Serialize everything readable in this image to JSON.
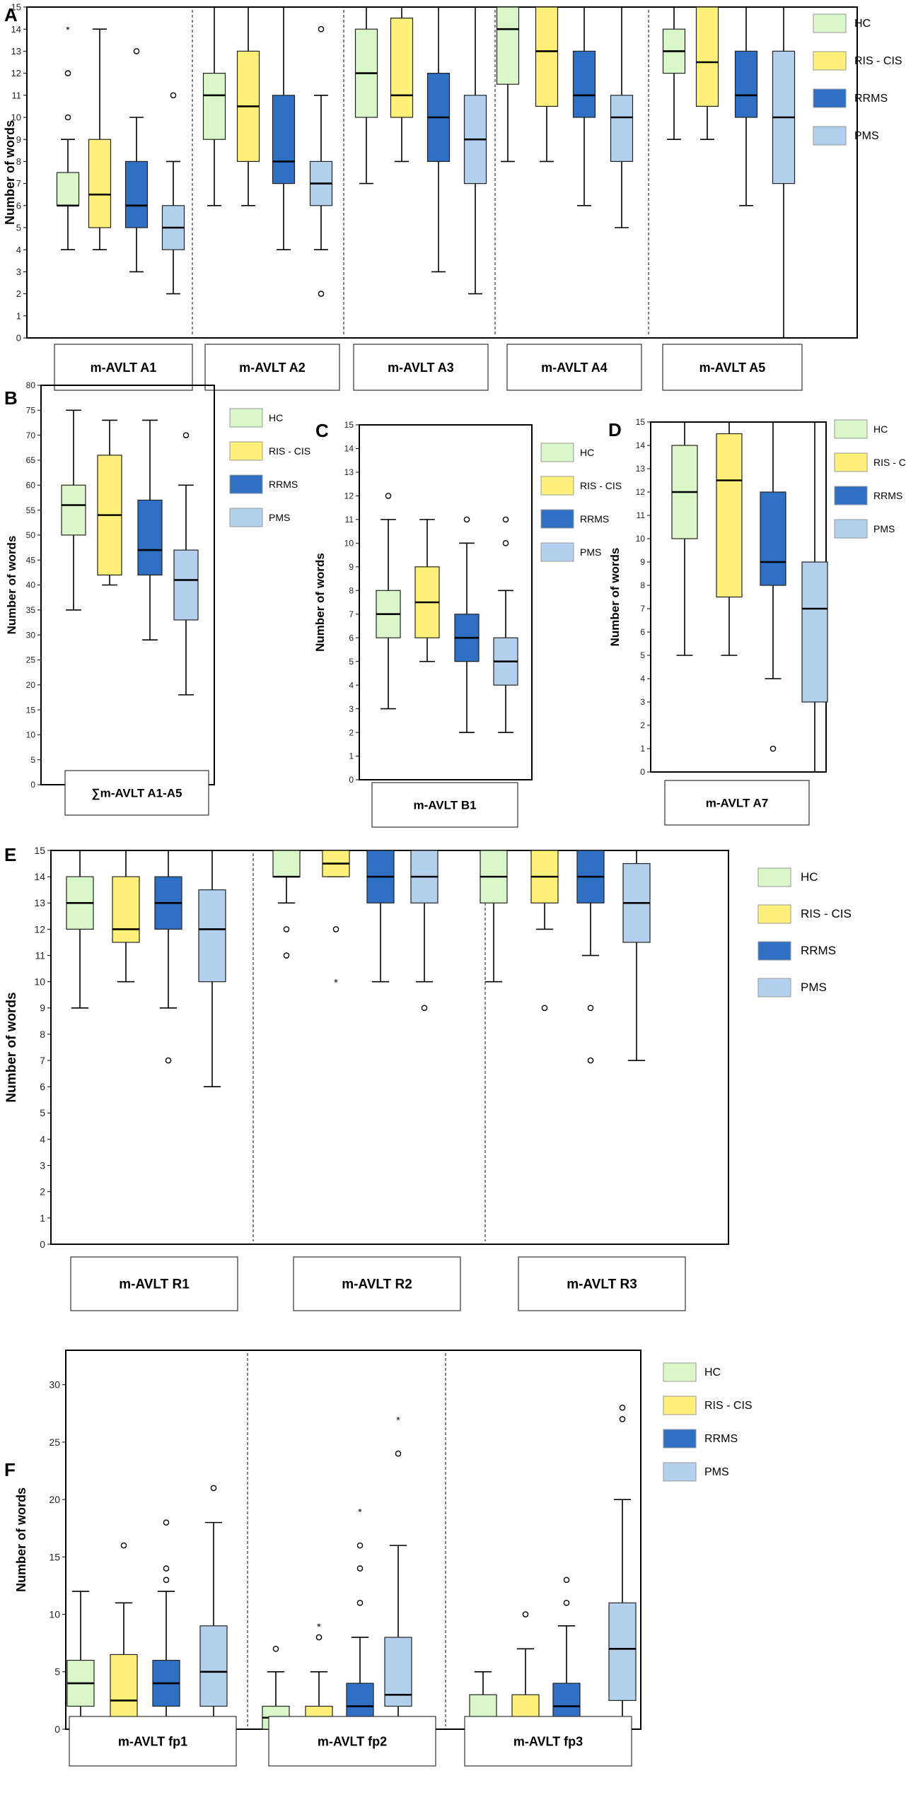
{
  "colors": {
    "HC": "#d9f7c8",
    "RIS - CIS": "#fff07a",
    "RRMS": "#2f6fc4",
    "PMS": "#b3d1ee"
  },
  "chart_data": [
    {
      "panel": "A",
      "type": "boxplot",
      "ylabel": "Number of words",
      "ylim": [
        0,
        15
      ],
      "yticks": [
        0,
        1,
        2,
        3,
        4,
        5,
        6,
        7,
        8,
        9,
        10,
        11,
        12,
        13,
        14,
        15
      ],
      "legend": [
        "HC",
        "RIS - CIS",
        "RRMS",
        "PMS"
      ],
      "groups": [
        {
          "label": "m-AVLT A1",
          "boxes": [
            {
              "series": "HC",
              "min": 4,
              "q1": 6,
              "median": 6,
              "q3": 7.5,
              "max": 9,
              "outliers": [
                10,
                12
              ],
              "extremes": [
                14
              ]
            },
            {
              "series": "RIS - CIS",
              "min": 4,
              "q1": 5,
              "median": 6.5,
              "q3": 9,
              "max": 14,
              "outliers": [],
              "extremes": []
            },
            {
              "series": "RRMS",
              "min": 3,
              "q1": 5,
              "median": 6,
              "q3": 8,
              "max": 10,
              "outliers": [
                13
              ],
              "extremes": []
            },
            {
              "series": "PMS",
              "min": 2,
              "q1": 4,
              "median": 5,
              "q3": 6,
              "max": 8,
              "outliers": [
                11
              ],
              "extremes": []
            }
          ]
        },
        {
          "label": "m-AVLT A2",
          "boxes": [
            {
              "series": "HC",
              "min": 6,
              "q1": 9,
              "median": 11,
              "q3": 12,
              "max": 15,
              "outliers": [],
              "extremes": []
            },
            {
              "series": "RIS - CIS",
              "min": 6,
              "q1": 8,
              "median": 10.5,
              "q3": 13,
              "max": 15,
              "outliers": [],
              "extremes": []
            },
            {
              "series": "RRMS",
              "min": 4,
              "q1": 7,
              "median": 8,
              "q3": 11,
              "max": 15,
              "outliers": [],
              "extremes": []
            },
            {
              "series": "PMS",
              "min": 4,
              "q1": 6,
              "median": 7,
              "q3": 8,
              "max": 11,
              "outliers": [
                2,
                14
              ],
              "extremes": []
            }
          ]
        },
        {
          "label": "m-AVLT A3",
          "boxes": [
            {
              "series": "HC",
              "min": 7,
              "q1": 10,
              "median": 12,
              "q3": 14,
              "max": 15,
              "outliers": [],
              "extremes": []
            },
            {
              "series": "RIS - CIS",
              "min": 8,
              "q1": 10,
              "median": 11,
              "q3": 14.5,
              "max": 15,
              "outliers": [],
              "extremes": []
            },
            {
              "series": "RRMS",
              "min": 3,
              "q1": 8,
              "median": 10,
              "q3": 12,
              "max": 15,
              "outliers": [],
              "extremes": []
            },
            {
              "series": "PMS",
              "min": 2,
              "q1": 7,
              "median": 9,
              "q3": 11,
              "max": 15,
              "outliers": [],
              "extremes": []
            }
          ]
        },
        {
          "label": "m-AVLT A4",
          "boxes": [
            {
              "series": "HC",
              "min": 8,
              "q1": 11.5,
              "median": 14,
              "q3": 15,
              "max": 15,
              "outliers": [],
              "extremes": []
            },
            {
              "series": "RIS - CIS",
              "min": 8,
              "q1": 10.5,
              "median": 13,
              "q3": 15,
              "max": 15,
              "outliers": [],
              "extremes": []
            },
            {
              "series": "RRMS",
              "min": 6,
              "q1": 10,
              "median": 11,
              "q3": 13,
              "max": 15,
              "outliers": [],
              "extremes": []
            },
            {
              "series": "PMS",
              "min": 5,
              "q1": 8,
              "median": 10,
              "q3": 11,
              "max": 15,
              "outliers": [],
              "extremes": []
            }
          ]
        },
        {
          "label": "m-AVLT A5",
          "boxes": [
            {
              "series": "HC",
              "min": 9,
              "q1": 12,
              "median": 13,
              "q3": 14,
              "max": 15,
              "outliers": [],
              "extremes": []
            },
            {
              "series": "RIS - CIS",
              "min": 9,
              "q1": 10.5,
              "median": 12.5,
              "q3": 15,
              "max": 15,
              "outliers": [],
              "extremes": []
            },
            {
              "series": "RRMS",
              "min": 6,
              "q1": 10,
              "median": 11,
              "q3": 13,
              "max": 15,
              "outliers": [],
              "extremes": []
            },
            {
              "series": "PMS",
              "min": 0,
              "q1": 7,
              "median": 10,
              "q3": 13,
              "max": 15,
              "outliers": [],
              "extremes": []
            }
          ]
        }
      ]
    },
    {
      "panel": "B",
      "type": "boxplot",
      "ylabel": "Number of words",
      "ylim": [
        0,
        80
      ],
      "yticks": [
        0,
        5,
        10,
        15,
        20,
        25,
        30,
        35,
        40,
        45,
        50,
        55,
        60,
        65,
        70,
        75,
        80
      ],
      "legend": [
        "HC",
        "RIS - CIS",
        "RRMS",
        "PMS"
      ],
      "groups": [
        {
          "label": "∑m-AVLT A1-A5",
          "boxes": [
            {
              "series": "HC",
              "min": 35,
              "q1": 50,
              "median": 56,
              "q3": 60,
              "max": 75,
              "outliers": [],
              "extremes": []
            },
            {
              "series": "RIS - CIS",
              "min": 40,
              "q1": 42,
              "median": 54,
              "q3": 66,
              "max": 73,
              "outliers": [],
              "extremes": []
            },
            {
              "series": "RRMS",
              "min": 29,
              "q1": 42,
              "median": 47,
              "q3": 57,
              "max": 73,
              "outliers": [],
              "extremes": []
            },
            {
              "series": "PMS",
              "min": 18,
              "q1": 33,
              "median": 41,
              "q3": 47,
              "max": 60,
              "outliers": [
                70
              ],
              "extremes": []
            }
          ]
        }
      ]
    },
    {
      "panel": "C",
      "type": "boxplot",
      "ylabel": "Number of words",
      "ylim": [
        0,
        15
      ],
      "yticks": [
        0,
        1,
        2,
        3,
        4,
        5,
        6,
        7,
        8,
        9,
        10,
        11,
        12,
        13,
        14,
        15
      ],
      "legend": [
        "HC",
        "RIS - CIS",
        "RRMS",
        "PMS"
      ],
      "groups": [
        {
          "label": "m-AVLT B1",
          "boxes": [
            {
              "series": "HC",
              "min": 3,
              "q1": 6,
              "median": 7,
              "q3": 8,
              "max": 11,
              "outliers": [
                12
              ],
              "extremes": []
            },
            {
              "series": "RIS - CIS",
              "min": 5,
              "q1": 6,
              "median": 7.5,
              "q3": 9,
              "max": 11,
              "outliers": [],
              "extremes": []
            },
            {
              "series": "RRMS",
              "min": 2,
              "q1": 5,
              "median": 6,
              "q3": 7,
              "max": 10,
              "outliers": [
                11
              ],
              "extremes": []
            },
            {
              "series": "PMS",
              "min": 2,
              "q1": 4,
              "median": 5,
              "q3": 6,
              "max": 8,
              "outliers": [
                10,
                11
              ],
              "extremes": []
            }
          ]
        }
      ]
    },
    {
      "panel": "D",
      "type": "boxplot",
      "ylabel": "Number of words",
      "ylim": [
        0,
        15
      ],
      "yticks": [
        0,
        1,
        2,
        3,
        4,
        5,
        6,
        7,
        8,
        9,
        10,
        11,
        12,
        13,
        14,
        15
      ],
      "legend": [
        "HC",
        "RIS - CIS",
        "RRMS",
        "PMS"
      ],
      "groups": [
        {
          "label": "m-AVLT A7",
          "boxes": [
            {
              "series": "HC",
              "min": 5,
              "q1": 10,
              "median": 12,
              "q3": 14,
              "max": 15,
              "outliers": [],
              "extremes": []
            },
            {
              "series": "RIS - CIS",
              "min": 5,
              "q1": 7.5,
              "median": 12.5,
              "q3": 14.5,
              "max": 15,
              "outliers": [],
              "extremes": []
            },
            {
              "series": "RRMS",
              "min": 4,
              "q1": 8,
              "median": 9,
              "q3": 12,
              "max": 15,
              "outliers": [
                1
              ],
              "extremes": []
            },
            {
              "series": "PMS",
              "min": 0,
              "q1": 3,
              "median": 7,
              "q3": 9,
              "max": 15,
              "outliers": [],
              "extremes": []
            }
          ]
        }
      ]
    },
    {
      "panel": "E",
      "type": "boxplot",
      "ylabel": "Number of words",
      "ylim": [
        0,
        15
      ],
      "yticks": [
        0,
        1,
        2,
        3,
        4,
        5,
        6,
        7,
        8,
        9,
        10,
        11,
        12,
        13,
        14,
        15
      ],
      "legend": [
        "HC",
        "RIS - CIS",
        "RRMS",
        "PMS"
      ],
      "groups": [
        {
          "label": "m-AVLT R1",
          "boxes": [
            {
              "series": "HC",
              "min": 9,
              "q1": 12,
              "median": 13,
              "q3": 14,
              "max": 15,
              "outliers": [],
              "extremes": []
            },
            {
              "series": "RIS - CIS",
              "min": 10,
              "q1": 11.5,
              "median": 12,
              "q3": 14,
              "max": 15,
              "outliers": [],
              "extremes": []
            },
            {
              "series": "RRMS",
              "min": 9,
              "q1": 12,
              "median": 13,
              "q3": 14,
              "max": 15,
              "outliers": [
                7
              ],
              "extremes": []
            },
            {
              "series": "PMS",
              "min": 6,
              "q1": 10,
              "median": 12,
              "q3": 13.5,
              "max": 15,
              "outliers": [],
              "extremes": []
            }
          ]
        },
        {
          "label": "m-AVLT R2",
          "boxes": [
            {
              "series": "HC",
              "min": 13,
              "q1": 14,
              "median": 14,
              "q3": 15,
              "max": 15,
              "outliers": [
                11,
                12
              ],
              "extremes": []
            },
            {
              "series": "RIS - CIS",
              "min": 14,
              "q1": 14,
              "median": 14.5,
              "q3": 15,
              "max": 15,
              "outliers": [
                12
              ],
              "extremes": [
                10
              ]
            },
            {
              "series": "RRMS",
              "min": 10,
              "q1": 13,
              "median": 14,
              "q3": 15,
              "max": 15,
              "outliers": [],
              "extremes": []
            },
            {
              "series": "PMS",
              "min": 10,
              "q1": 13,
              "median": 14,
              "q3": 15,
              "max": 15,
              "outliers": [
                9
              ],
              "extremes": []
            }
          ]
        },
        {
          "label": "m-AVLT R3",
          "boxes": [
            {
              "series": "HC",
              "min": 10,
              "q1": 13,
              "median": 14,
              "q3": 15,
              "max": 15,
              "outliers": [],
              "extremes": []
            },
            {
              "series": "RIS - CIS",
              "min": 12,
              "q1": 13,
              "median": 14,
              "q3": 15,
              "max": 15,
              "outliers": [
                9
              ],
              "extremes": []
            },
            {
              "series": "RRMS",
              "min": 11,
              "q1": 13,
              "median": 14,
              "q3": 15,
              "max": 15,
              "outliers": [
                7,
                9
              ],
              "extremes": []
            },
            {
              "series": "PMS",
              "min": 7,
              "q1": 11.5,
              "median": 13,
              "q3": 14.5,
              "max": 15,
              "outliers": [],
              "extremes": []
            }
          ]
        }
      ]
    },
    {
      "panel": "F",
      "type": "boxplot",
      "ylabel": "Number of words",
      "ylim": [
        0,
        33
      ],
      "yticks": [
        0,
        5,
        10,
        15,
        20,
        25,
        30
      ],
      "legend": [
        "HC",
        "RIS - CIS",
        "RRMS",
        "PMS"
      ],
      "groups": [
        {
          "label": "m-AVLT fp1",
          "boxes": [
            {
              "series": "HC",
              "min": 0,
              "q1": 2,
              "median": 4,
              "q3": 6,
              "max": 12,
              "outliers": [],
              "extremes": []
            },
            {
              "series": "RIS - CIS",
              "min": 0,
              "q1": 1,
              "median": 2.5,
              "q3": 6.5,
              "max": 11,
              "outliers": [
                16
              ],
              "extremes": []
            },
            {
              "series": "RRMS",
              "min": 0,
              "q1": 2,
              "median": 4,
              "q3": 6,
              "max": 12,
              "outliers": [
                13,
                14,
                18
              ],
              "extremes": []
            },
            {
              "series": "PMS",
              "min": 0,
              "q1": 2,
              "median": 5,
              "q3": 9,
              "max": 18,
              "outliers": [
                21
              ],
              "extremes": []
            }
          ]
        },
        {
          "label": "m-AVLT fp2",
          "boxes": [
            {
              "series": "HC",
              "min": 0,
              "q1": 0,
              "median": 1,
              "q3": 2,
              "max": 5,
              "outliers": [
                7
              ],
              "extremes": []
            },
            {
              "series": "RIS - CIS",
              "min": 0,
              "q1": 0,
              "median": 0.5,
              "q3": 2,
              "max": 5,
              "outliers": [
                8
              ],
              "extremes": [
                9
              ]
            },
            {
              "series": "RRMS",
              "min": 0,
              "q1": 0,
              "median": 2,
              "q3": 4,
              "max": 8,
              "outliers": [
                11,
                14,
                16
              ],
              "extremes": [
                19
              ]
            },
            {
              "series": "PMS",
              "min": 0,
              "q1": 2,
              "median": 3,
              "q3": 8,
              "max": 16,
              "outliers": [
                24
              ],
              "extremes": [
                27
              ]
            }
          ]
        },
        {
          "label": "m-AVLT fp3",
          "boxes": [
            {
              "series": "HC",
              "min": 0,
              "q1": 0,
              "median": 1,
              "q3": 3,
              "max": 5,
              "outliers": [],
              "extremes": []
            },
            {
              "series": "RIS - CIS",
              "min": 0,
              "q1": 0,
              "median": 1,
              "q3": 3,
              "max": 7,
              "outliers": [
                10
              ],
              "extremes": []
            },
            {
              "series": "RRMS",
              "min": 0,
              "q1": 0,
              "median": 2,
              "q3": 4,
              "max": 9,
              "outliers": [
                11,
                13
              ],
              "extremes": []
            },
            {
              "series": "PMS",
              "min": 0,
              "q1": 2.5,
              "median": 7,
              "q3": 11,
              "max": 20,
              "outliers": [
                27,
                28
              ],
              "extremes": []
            }
          ]
        }
      ]
    }
  ]
}
